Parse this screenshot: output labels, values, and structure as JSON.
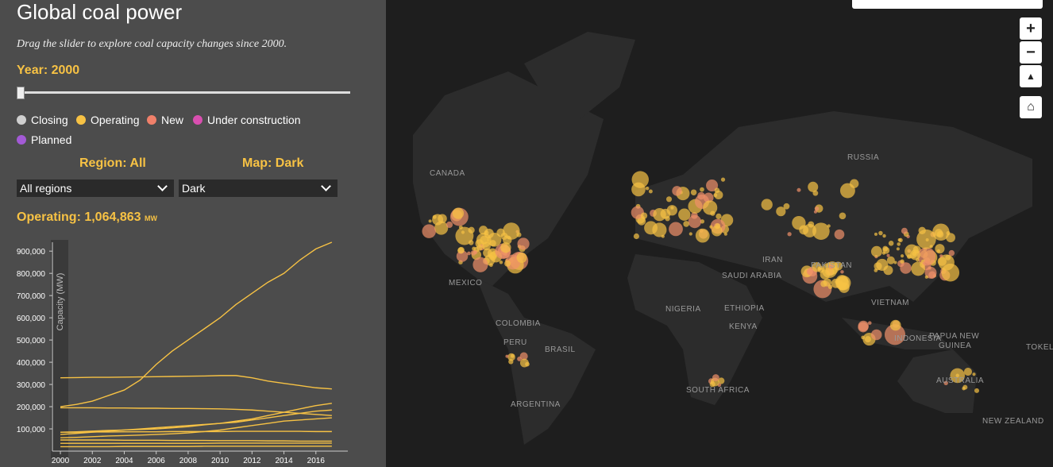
{
  "header": {
    "title": "Global coal power",
    "subtitle": "Drag the slider to explore coal capacity changes since 2000."
  },
  "controls": {
    "year_label": "Year: 2000",
    "legend": [
      {
        "label": "Closing",
        "color": "#cfcfcf"
      },
      {
        "label": "Operating",
        "color": "#f7c244"
      },
      {
        "label": "New",
        "color": "#f0806a"
      },
      {
        "label": "Under construction",
        "color": "#d94fb0"
      },
      {
        "label": "Planned",
        "color": "#a35ad6"
      }
    ],
    "region_label": "Region: All",
    "map_label": "Map: Dark",
    "region_select": "All regions",
    "map_select": "Dark",
    "operating_label": "Operating: 1,064,863",
    "operating_unit": "MW"
  },
  "map": {
    "labels": [
      "CANADA",
      "RUSSIA",
      "MEXICO",
      "COLOMBIA",
      "PERU",
      "BRASIL",
      "ARGENTINA",
      "NIGERIA",
      "ETHIOPIA",
      "KENYA",
      "SAUDI ARABIA",
      "IRAN",
      "PAKISTAN",
      "VIETNAM",
      "INDONESIA",
      "PAPUA NEW",
      "GUINEA",
      "AUSTRALIA",
      "NEW ZEALAND",
      "SOUTH AFRICA",
      "TOKEL"
    ]
  },
  "chart_data": {
    "type": "line",
    "y_label": "Capacity (MW)",
    "x": [
      2000,
      2001,
      2002,
      2003,
      2004,
      2005,
      2006,
      2007,
      2008,
      2009,
      2010,
      2011,
      2012,
      2013,
      2014,
      2015,
      2016,
      2017
    ],
    "xlim": [
      1999.5,
      2018
    ],
    "xticks": [
      2000,
      2002,
      2004,
      2006,
      2008,
      2010,
      2012,
      2014,
      2016
    ],
    "ylim": [
      0,
      940000
    ],
    "yticks": [
      {
        "value": 100000,
        "label": "100,000"
      },
      {
        "value": 200000,
        "label": "200,000"
      },
      {
        "value": 300000,
        "label": "300,000"
      },
      {
        "value": 400000,
        "label": "400,000"
      },
      {
        "value": 500000,
        "label": "500,000"
      },
      {
        "value": 600000,
        "label": "600,000"
      },
      {
        "value": 700000,
        "label": "700,000"
      },
      {
        "value": 800000,
        "label": "800,000"
      },
      {
        "value": 900000,
        "label": "900,000"
      }
    ],
    "series": [
      {
        "color": "#f7c244",
        "values": [
          200000,
          210000,
          225000,
          250000,
          275000,
          320000,
          390000,
          450000,
          500000,
          550000,
          600000,
          660000,
          710000,
          760000,
          800000,
          860000,
          910000,
          940000
        ]
      },
      {
        "color": "#f7c244",
        "values": [
          330000,
          331000,
          332000,
          332000,
          333000,
          334000,
          335000,
          336000,
          337000,
          338000,
          340000,
          340000,
          330000,
          315000,
          305000,
          295000,
          285000,
          280000
        ]
      },
      {
        "color": "#f7c244",
        "values": [
          195000,
          195000,
          195000,
          194000,
          194000,
          193000,
          193000,
          192000,
          192000,
          191000,
          190000,
          188000,
          185000,
          180000,
          175000,
          170000,
          165000,
          160000
        ]
      },
      {
        "color": "#f7c244",
        "values": [
          85000,
          87000,
          90000,
          93000,
          95000,
          97000,
          100000,
          105000,
          110000,
          118000,
          125000,
          135000,
          145000,
          160000,
          175000,
          190000,
          205000,
          215000
        ]
      },
      {
        "color": "#f7c244",
        "values": [
          75000,
          80000,
          85000,
          90000,
          95000,
          100000,
          105000,
          110000,
          115000,
          120000,
          125000,
          130000,
          140000,
          150000,
          160000,
          170000,
          180000,
          185000
        ]
      },
      {
        "color": "#f7c244",
        "values": [
          85000,
          85000,
          86000,
          86000,
          87000,
          87000,
          87000,
          88000,
          88000,
          88000,
          88000,
          89000,
          89000,
          89000,
          89000,
          89000,
          88000,
          88000
        ]
      },
      {
        "color": "#f7c244",
        "values": [
          60000,
          62000,
          65000,
          68000,
          70000,
          72000,
          75000,
          78000,
          82000,
          88000,
          95000,
          105000,
          115000,
          125000,
          135000,
          140000,
          145000,
          150000
        ]
      },
      {
        "color": "#f7c244",
        "values": [
          50000,
          50000,
          50000,
          50000,
          49000,
          49000,
          49000,
          48000,
          48000,
          48000,
          47000,
          47000,
          47000,
          46000,
          46000,
          45000,
          45000,
          45000
        ]
      },
      {
        "color": "#f7c244",
        "values": [
          35000,
          35000,
          35000,
          35000,
          35000,
          35000,
          35000,
          35000,
          35000,
          35000,
          36000,
          36000,
          36000,
          36000,
          36000,
          36000,
          36000,
          36000
        ]
      },
      {
        "color": "#f7c244",
        "values": [
          20000,
          20000,
          20000,
          20000,
          21000,
          21000,
          21000,
          21000,
          21000,
          22000,
          22000,
          22000,
          22000,
          22000,
          22000,
          22000,
          22000,
          22000
        ]
      }
    ]
  }
}
